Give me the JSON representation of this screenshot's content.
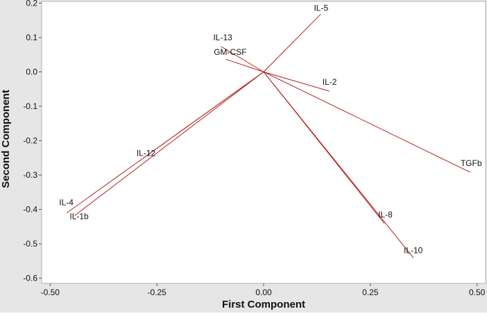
{
  "chart_data": {
    "type": "line",
    "subtype": "loading-plot",
    "title": "",
    "xlabel": "First Component",
    "ylabel": "Second Component",
    "xlim": [
      -0.52,
      0.52
    ],
    "ylim": [
      -0.615,
      0.205
    ],
    "xticks": [
      -0.5,
      -0.25,
      0.0,
      0.25,
      0.5
    ],
    "xtick_labels": [
      "-0.50",
      "-0.25",
      "0.00",
      "0.25",
      "0.50"
    ],
    "yticks": [
      0.2,
      0.1,
      0.0,
      -0.1,
      -0.2,
      -0.3,
      -0.4,
      -0.5,
      -0.6
    ],
    "ytick_labels": [
      "0.2",
      "0.1",
      "0.0",
      "-0.1",
      "-0.2",
      "-0.3",
      "-0.4",
      "-0.5",
      "-0.6"
    ],
    "grid": false,
    "line_color": "#b22222",
    "plot_background": "#ffffff",
    "frame_background": "#e6e6e6",
    "vectors": [
      {
        "label": "IL-5",
        "x": 0.134,
        "y": 0.168
      },
      {
        "label": "IL-13",
        "x": -0.1,
        "y": 0.074
      },
      {
        "label": "GM-CSF",
        "x": -0.089,
        "y": 0.037
      },
      {
        "label": "IL-2",
        "x": 0.154,
        "y": -0.056
      },
      {
        "label": "TGFb",
        "x": 0.484,
        "y": -0.292
      },
      {
        "label": "IL-12",
        "x": -0.283,
        "y": -0.252
      },
      {
        "label": "IL-4",
        "x": -0.461,
        "y": -0.41
      },
      {
        "label": "IL-1b",
        "x": -0.443,
        "y": -0.418
      },
      {
        "label": "IL-8",
        "x": 0.283,
        "y": -0.441
      },
      {
        "label": "IL-10",
        "x": 0.351,
        "y": -0.541
      }
    ]
  }
}
